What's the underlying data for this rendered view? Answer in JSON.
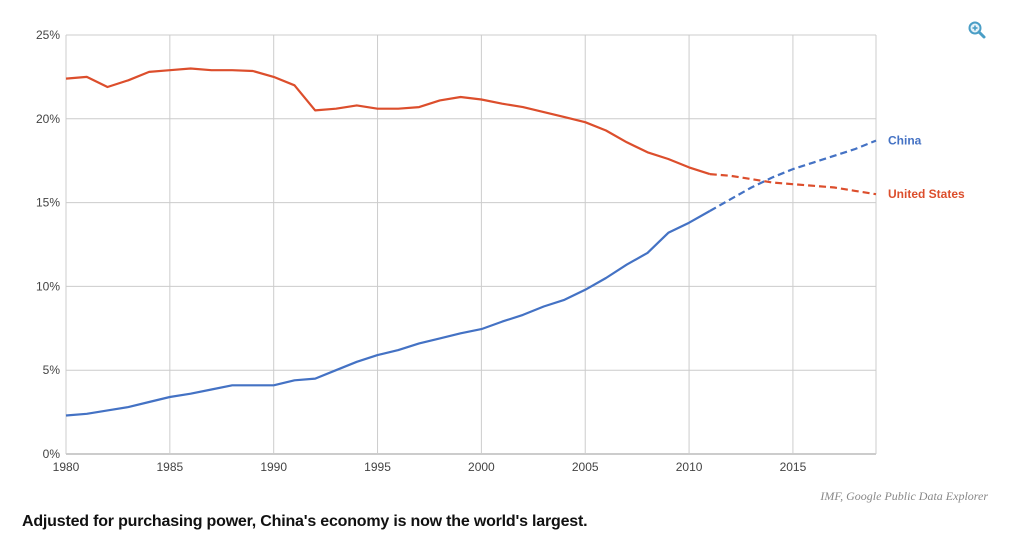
{
  "chart_data": {
    "type": "line",
    "title": "",
    "xlabel": "",
    "ylabel": "",
    "xlim": [
      1980,
      2019
    ],
    "ylim": [
      0,
      25
    ],
    "x_ticks": [
      "1980",
      "1985",
      "1990",
      "1995",
      "2000",
      "2005",
      "2010",
      "2015"
    ],
    "y_ticks": [
      "0%",
      "5%",
      "10%",
      "15%",
      "20%",
      "25%"
    ],
    "grid": true,
    "legend": "inline labels at right end of lines",
    "series": [
      {
        "name": "China",
        "color": "#4472c4",
        "style": "solid, dashed after 2011 (projection)",
        "projection_from": 2011,
        "x": [
          1980,
          1981,
          1982,
          1983,
          1984,
          1985,
          1986,
          1987,
          1988,
          1989,
          1990,
          1991,
          1992,
          1993,
          1994,
          1995,
          1996,
          1997,
          1998,
          1999,
          2000,
          2001,
          2002,
          2003,
          2004,
          2005,
          2006,
          2007,
          2008,
          2009,
          2010,
          2011,
          2012,
          2013,
          2014,
          2015,
          2016,
          2017,
          2018,
          2019
        ],
        "values": [
          2.3,
          2.4,
          2.6,
          2.8,
          3.1,
          3.4,
          3.6,
          3.85,
          4.1,
          4.1,
          4.1,
          4.4,
          4.5,
          5.0,
          5.5,
          5.9,
          6.2,
          6.6,
          6.9,
          7.2,
          7.45,
          7.9,
          8.3,
          8.8,
          9.2,
          9.8,
          10.5,
          11.3,
          12.0,
          13.2,
          13.8,
          14.5,
          15.2,
          15.9,
          16.5,
          17.0,
          17.4,
          17.8,
          18.2,
          18.7
        ]
      },
      {
        "name": "United States",
        "color": "#dc4e2c",
        "style": "solid, dashed after 2011 (projection)",
        "projection_from": 2011,
        "x": [
          1980,
          1981,
          1982,
          1983,
          1984,
          1985,
          1986,
          1987,
          1988,
          1989,
          1990,
          1991,
          1992,
          1993,
          1994,
          1995,
          1996,
          1997,
          1998,
          1999,
          2000,
          2001,
          2002,
          2003,
          2004,
          2005,
          2006,
          2007,
          2008,
          2009,
          2010,
          2011,
          2012,
          2013,
          2014,
          2015,
          2016,
          2017,
          2018,
          2019
        ],
        "values": [
          22.4,
          22.5,
          21.9,
          22.3,
          22.8,
          22.9,
          23.0,
          22.9,
          22.9,
          22.85,
          22.5,
          22.0,
          20.5,
          20.6,
          20.8,
          20.6,
          20.6,
          20.7,
          21.1,
          21.3,
          21.15,
          20.9,
          20.7,
          20.4,
          20.1,
          19.8,
          19.3,
          18.6,
          18.0,
          17.6,
          17.1,
          16.7,
          16.6,
          16.4,
          16.2,
          16.1,
          16.0,
          15.9,
          15.7,
          15.5
        ]
      }
    ]
  },
  "toolbar": {
    "zoom_icon": "zoom-in-icon"
  },
  "source_text": "IMF, Google Public Data Explorer",
  "caption_text": "Adjusted for purchasing power, China's economy is now the world's largest."
}
